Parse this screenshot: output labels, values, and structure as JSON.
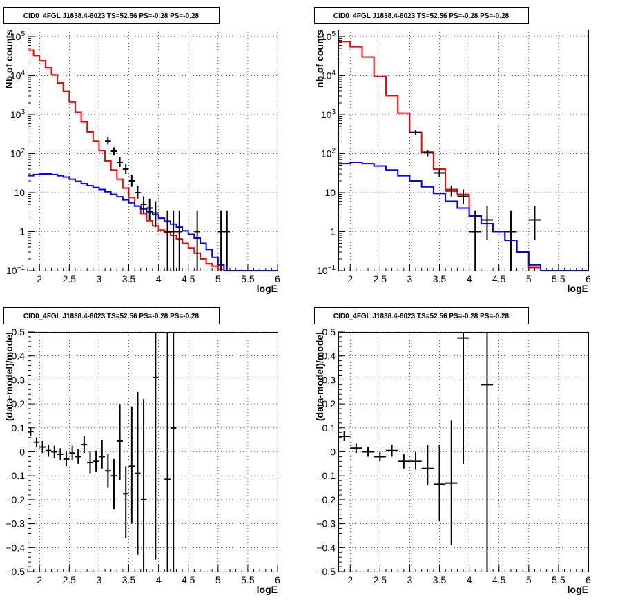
{
  "chart_data": [
    {
      "type": "histogram",
      "scale": "log",
      "title": "CID0_4FGL J1838.4-6023 TS=52.56 PS=-0.28 PS=-0.28",
      "xlabel": "logE",
      "ylabel": "Nb of counts",
      "xlim": [
        1.8,
        6.0
      ],
      "ylim": [
        0.1,
        150000
      ],
      "x_ticks": [
        "2",
        "2.5",
        "3",
        "3.5",
        "4",
        "4.5",
        "5",
        "5.5",
        "6"
      ],
      "y_ticks": [
        {
          "v": 0.1,
          "base": "10",
          "exp": "−1"
        },
        {
          "v": 1,
          "label": "1"
        },
        {
          "v": 10,
          "label": "10"
        },
        {
          "v": 100,
          "base": "10",
          "exp": "2"
        },
        {
          "v": 1000,
          "base": "10",
          "exp": "3"
        },
        {
          "v": 10000,
          "base": "10",
          "exp": "4"
        },
        {
          "v": 100000,
          "base": "10",
          "exp": "5"
        }
      ],
      "series": [
        {
          "color": "#ff0000",
          "edges": [
            1.8,
            1.9,
            2.0,
            2.1,
            2.2,
            2.3,
            2.4,
            2.5,
            2.6,
            2.7,
            2.8,
            2.9,
            3.0,
            3.1,
            3.2,
            3.3,
            3.4,
            3.5,
            3.6,
            3.7,
            3.8,
            3.9,
            4.0,
            4.1,
            4.2,
            4.3,
            4.4,
            4.5,
            4.6,
            4.7,
            4.8,
            4.9,
            5.0,
            5.1,
            5.2
          ],
          "values": [
            45000,
            33000,
            24000,
            16000,
            10500,
            6500,
            3900,
            2100,
            1150,
            650,
            360,
            210,
            120,
            65,
            38,
            22,
            13,
            7.5,
            4.5,
            2.9,
            1.9,
            1.4,
            1.1,
            0.95,
            0.8,
            0.65,
            0.5,
            0.38,
            0.28,
            0.2,
            0.15,
            0.13,
            0.11,
            0.1
          ]
        },
        {
          "color": "#0000ff",
          "edges": [
            1.8,
            1.9,
            2.0,
            2.1,
            2.2,
            2.3,
            2.4,
            2.5,
            2.6,
            2.7,
            2.8,
            2.9,
            3.0,
            3.1,
            3.2,
            3.3,
            3.4,
            3.5,
            3.6,
            3.7,
            3.8,
            3.9,
            4.0,
            4.1,
            4.2,
            4.3,
            4.4,
            4.5,
            4.6,
            4.7,
            4.8,
            4.9,
            5.0,
            5.1,
            5.2,
            5.3,
            5.4,
            5.5,
            5.6,
            5.7,
            5.8,
            5.9,
            6.0
          ],
          "values": [
            27,
            29,
            30,
            30,
            29,
            27,
            25,
            22,
            19.5,
            17,
            15,
            13.5,
            12,
            10.5,
            9,
            7.8,
            6.5,
            5.5,
            4.5,
            3.8,
            3.2,
            2.7,
            2.2,
            1.85,
            1.55,
            1.3,
            1.05,
            0.85,
            0.68,
            0.5,
            0.35,
            0.22,
            0.14,
            0.1,
            0.1,
            0.1,
            0.1,
            0.1,
            0.1,
            0.1,
            0.1,
            0.1
          ]
        }
      ],
      "points": [
        {
          "x": 3.15,
          "y": 210,
          "ylo": 170,
          "yhi": 260,
          "xe": 0.05
        },
        {
          "x": 3.25,
          "y": 115,
          "ylo": 90,
          "yhi": 145,
          "xe": 0.05
        },
        {
          "x": 3.35,
          "y": 60,
          "ylo": 45,
          "yhi": 80,
          "xe": 0.05
        },
        {
          "x": 3.45,
          "y": 40,
          "ylo": 30,
          "yhi": 55,
          "xe": 0.05
        },
        {
          "x": 3.55,
          "y": 20,
          "ylo": 14,
          "yhi": 28,
          "xe": 0.05
        },
        {
          "x": 3.65,
          "y": 10,
          "ylo": 7,
          "yhi": 15,
          "xe": 0.05
        },
        {
          "x": 3.75,
          "y": 5,
          "ylo": 3,
          "yhi": 8,
          "xe": 0.05
        },
        {
          "x": 3.85,
          "y": 4,
          "ylo": 2,
          "yhi": 7,
          "xe": 0.05
        },
        {
          "x": 3.95,
          "y": 3,
          "ylo": 1.3,
          "yhi": 6,
          "xe": 0.05
        },
        {
          "x": 4.15,
          "y": 1,
          "ylo": 0.1,
          "yhi": 3.5,
          "xe": 0.05
        },
        {
          "x": 4.25,
          "y": 1,
          "ylo": 0.1,
          "yhi": 3.5,
          "xe": 0.05
        },
        {
          "x": 4.35,
          "y": 1,
          "ylo": 0.1,
          "yhi": 3.5,
          "xe": 0.05
        },
        {
          "x": 4.65,
          "y": 1,
          "ylo": 0.1,
          "yhi": 3.5,
          "xe": 0.05
        },
        {
          "x": 5.05,
          "y": 1,
          "ylo": 0.1,
          "yhi": 3.5,
          "xe": 0.05
        },
        {
          "x": 5.15,
          "y": 1,
          "ylo": 0.1,
          "yhi": 3.5,
          "xe": 0.05
        }
      ]
    },
    {
      "type": "histogram",
      "scale": "log",
      "title": "CID0_4FGL J1838.4-6023 TS=52.56 PS=-0.28 PS=-0.28",
      "xlabel": "logE",
      "ylabel": "nb of counts",
      "xlim": [
        1.8,
        6.0
      ],
      "ylim": [
        0.1,
        150000
      ],
      "x_ticks": [
        "2",
        "2.5",
        "3",
        "3.5",
        "4",
        "4.5",
        "5",
        "5.5",
        "6"
      ],
      "y_ticks": [
        {
          "v": 0.1,
          "base": "10",
          "exp": "−1"
        },
        {
          "v": 1,
          "label": "1"
        },
        {
          "v": 10,
          "label": "10"
        },
        {
          "v": 100,
          "base": "10",
          "exp": "2"
        },
        {
          "v": 1000,
          "base": "10",
          "exp": "3"
        },
        {
          "v": 10000,
          "base": "10",
          "exp": "4"
        },
        {
          "v": 100000,
          "base": "10",
          "exp": "5"
        }
      ],
      "series": [
        {
          "color": "#ff0000",
          "edges": [
            1.8,
            2.0,
            2.2,
            2.4,
            2.6,
            2.8,
            3.0,
            3.2,
            3.4,
            3.6,
            3.8,
            4.0,
            4.2,
            4.4,
            4.6,
            4.8,
            5.0,
            5.2
          ],
          "values": [
            75000,
            55000,
            30000,
            9500,
            3100,
            1100,
            350,
            110,
            40,
            12,
            9,
            2.5,
            1.6,
            1.0,
            0.6,
            0.3,
            0.12
          ]
        },
        {
          "color": "#0000ff",
          "edges": [
            1.8,
            2.0,
            2.2,
            2.4,
            2.6,
            2.8,
            3.0,
            3.2,
            3.4,
            3.6,
            3.8,
            4.0,
            4.2,
            4.4,
            4.6,
            4.8,
            5.0,
            5.2,
            5.4,
            5.6,
            5.8,
            6.0
          ],
          "values": [
            55,
            60,
            55,
            48,
            38,
            27,
            20,
            14,
            9.5,
            6,
            4,
            2.5,
            1.6,
            1.0,
            0.6,
            0.3,
            0.14,
            0.1,
            0.1,
            0.1,
            0.1
          ]
        }
      ],
      "points": [
        {
          "x": 3.1,
          "y": 350,
          "ylo": 300,
          "yhi": 400,
          "xe": 0.1
        },
        {
          "x": 3.3,
          "y": 105,
          "ylo": 85,
          "yhi": 125,
          "xe": 0.1
        },
        {
          "x": 3.5,
          "y": 32,
          "ylo": 25,
          "yhi": 40,
          "xe": 0.1
        },
        {
          "x": 3.7,
          "y": 11,
          "ylo": 8,
          "yhi": 15,
          "xe": 0.1
        },
        {
          "x": 3.9,
          "y": 8,
          "ylo": 5,
          "yhi": 12,
          "xe": 0.1
        },
        {
          "x": 4.1,
          "y": 1,
          "ylo": 0.1,
          "yhi": 3.5,
          "xe": 0.1
        },
        {
          "x": 4.3,
          "y": 2,
          "ylo": 0.6,
          "yhi": 4.5,
          "xe": 0.1
        },
        {
          "x": 4.7,
          "y": 1,
          "ylo": 0.1,
          "yhi": 3.5,
          "xe": 0.1
        },
        {
          "x": 5.1,
          "y": 2,
          "ylo": 0.6,
          "yhi": 4.5,
          "xe": 0.1
        }
      ]
    },
    {
      "type": "errorbar",
      "scale": "linear",
      "title": "CID0_4FGL J1838.4-6023 TS=52.56 PS=-0.28 PS=-0.28",
      "xlabel": "logE",
      "ylabel": "(data-model)/model",
      "xlim": [
        1.8,
        6.0
      ],
      "ylim": [
        -0.5,
        0.5
      ],
      "x_ticks": [
        "2",
        "2.5",
        "3",
        "3.5",
        "4",
        "4.5",
        "5",
        "5.5",
        "6"
      ],
      "y_ticks": [
        {
          "v": -0.5,
          "label": "−0.5"
        },
        {
          "v": -0.4,
          "label": "−0.4"
        },
        {
          "v": -0.3,
          "label": "−0.3"
        },
        {
          "v": -0.2,
          "label": "−0.2"
        },
        {
          "v": -0.1,
          "label": "−0.1"
        },
        {
          "v": 0,
          "label": "0"
        },
        {
          "v": 0.1,
          "label": "0.1"
        },
        {
          "v": 0.2,
          "label": "0.2"
        },
        {
          "v": 0.3,
          "label": "0.3"
        },
        {
          "v": 0.4,
          "label": "0.4"
        },
        {
          "v": 0.5,
          "label": "0.5"
        }
      ],
      "points": [
        {
          "x": 1.85,
          "y": 0.085,
          "ylo": 0.065,
          "yhi": 0.105,
          "xe": 0.05
        },
        {
          "x": 1.95,
          "y": 0.04,
          "ylo": 0.02,
          "yhi": 0.06,
          "xe": 0.05
        },
        {
          "x": 2.05,
          "y": 0.02,
          "ylo": -0.005,
          "yhi": 0.045,
          "xe": 0.05
        },
        {
          "x": 2.15,
          "y": 0.005,
          "ylo": -0.02,
          "yhi": 0.03,
          "xe": 0.05
        },
        {
          "x": 2.25,
          "y": 0.0,
          "ylo": -0.025,
          "yhi": 0.025,
          "xe": 0.05
        },
        {
          "x": 2.35,
          "y": -0.01,
          "ylo": -0.035,
          "yhi": 0.015,
          "xe": 0.05
        },
        {
          "x": 2.45,
          "y": -0.03,
          "ylo": -0.06,
          "yhi": 0.0,
          "xe": 0.05
        },
        {
          "x": 2.55,
          "y": -0.005,
          "ylo": -0.035,
          "yhi": 0.025,
          "xe": 0.05
        },
        {
          "x": 2.65,
          "y": -0.02,
          "ylo": -0.05,
          "yhi": 0.01,
          "xe": 0.05
        },
        {
          "x": 2.75,
          "y": 0.03,
          "ylo": -0.005,
          "yhi": 0.065,
          "xe": 0.05
        },
        {
          "x": 2.85,
          "y": -0.045,
          "ylo": -0.09,
          "yhi": 0.0,
          "xe": 0.05
        },
        {
          "x": 2.95,
          "y": -0.04,
          "ylo": -0.085,
          "yhi": 0.005,
          "xe": 0.05
        },
        {
          "x": 3.05,
          "y": -0.02,
          "ylo": -0.07,
          "yhi": 0.05,
          "xe": 0.05
        },
        {
          "x": 3.15,
          "y": -0.08,
          "ylo": -0.15,
          "yhi": -0.01,
          "xe": 0.05
        },
        {
          "x": 3.25,
          "y": -0.1,
          "ylo": -0.24,
          "yhi": -0.03,
          "xe": 0.05
        },
        {
          "x": 3.35,
          "y": 0.045,
          "ylo": -0.12,
          "yhi": 0.2,
          "xe": 0.05
        },
        {
          "x": 3.45,
          "y": -0.175,
          "ylo": -0.36,
          "yhi": -0.06,
          "xe": 0.05
        },
        {
          "x": 3.55,
          "y": -0.06,
          "ylo": -0.3,
          "yhi": 0.19,
          "xe": 0.05
        },
        {
          "x": 3.65,
          "y": -0.09,
          "ylo": -0.43,
          "yhi": 0.25,
          "xe": 0.05
        },
        {
          "x": 3.75,
          "y": -0.2,
          "ylo": -0.5,
          "yhi": 0.22,
          "xe": 0.05
        },
        {
          "x": 3.95,
          "y": 0.31,
          "ylo": -0.45,
          "yhi": 0.5,
          "xe": 0.05
        },
        {
          "x": 4.15,
          "y": -0.115,
          "ylo": -0.5,
          "yhi": 0.5,
          "xe": 0.05
        },
        {
          "x": 4.25,
          "y": 0.1,
          "ylo": -0.5,
          "yhi": 0.5,
          "xe": 0.05
        }
      ]
    },
    {
      "type": "errorbar",
      "scale": "linear",
      "title": "CID0_4FGL J1838.4-6023 TS=52.56 PS=-0.28 PS=-0.28",
      "xlabel": "logE",
      "ylabel": "(data-model)/model",
      "xlim": [
        1.8,
        6.0
      ],
      "ylim": [
        -0.5,
        0.5
      ],
      "x_ticks": [
        "2",
        "2.5",
        "3",
        "3.5",
        "4",
        "4.5",
        "5",
        "5.5",
        "6"
      ],
      "y_ticks": [
        {
          "v": -0.5,
          "label": "−0.5"
        },
        {
          "v": -0.4,
          "label": "−0.4"
        },
        {
          "v": -0.3,
          "label": "−0.3"
        },
        {
          "v": -0.2,
          "label": "−0.2"
        },
        {
          "v": -0.1,
          "label": "−0.1"
        },
        {
          "v": 0,
          "label": "0"
        },
        {
          "v": 0.1,
          "label": "0.1"
        },
        {
          "v": 0.2,
          "label": "0.2"
        },
        {
          "v": 0.3,
          "label": "0.3"
        },
        {
          "v": 0.4,
          "label": "0.4"
        },
        {
          "v": 0.5,
          "label": "0.5"
        }
      ],
      "points": [
        {
          "x": 1.9,
          "y": 0.065,
          "ylo": 0.045,
          "yhi": 0.085,
          "xe": 0.1
        },
        {
          "x": 2.1,
          "y": 0.015,
          "ylo": -0.005,
          "yhi": 0.035,
          "xe": 0.1
        },
        {
          "x": 2.3,
          "y": 0.0,
          "ylo": -0.02,
          "yhi": 0.02,
          "xe": 0.1
        },
        {
          "x": 2.5,
          "y": -0.02,
          "ylo": -0.04,
          "yhi": 0.0,
          "xe": 0.1
        },
        {
          "x": 2.7,
          "y": 0.005,
          "ylo": -0.02,
          "yhi": 0.03,
          "xe": 0.1
        },
        {
          "x": 2.9,
          "y": -0.04,
          "ylo": -0.07,
          "yhi": -0.01,
          "xe": 0.1
        },
        {
          "x": 3.1,
          "y": -0.04,
          "ylo": -0.075,
          "yhi": 0.0,
          "xe": 0.1
        },
        {
          "x": 3.3,
          "y": -0.07,
          "ylo": -0.14,
          "yhi": 0.03,
          "xe": 0.1
        },
        {
          "x": 3.5,
          "y": -0.135,
          "ylo": -0.29,
          "yhi": 0.03,
          "xe": 0.1
        },
        {
          "x": 3.7,
          "y": -0.13,
          "ylo": -0.39,
          "yhi": 0.13,
          "xe": 0.1
        },
        {
          "x": 3.9,
          "y": 0.475,
          "ylo": -0.05,
          "yhi": 0.5,
          "xe": 0.1
        },
        {
          "x": 4.3,
          "y": 0.28,
          "ylo": -0.5,
          "yhi": 0.5,
          "xe": 0.1
        }
      ]
    }
  ]
}
